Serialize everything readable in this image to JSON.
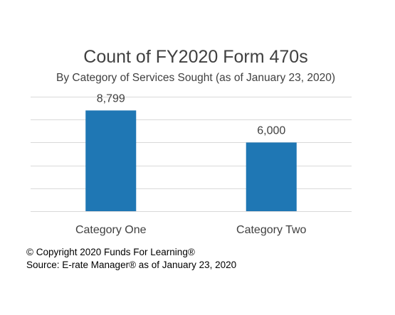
{
  "chart_data": {
    "type": "bar",
    "title": "Count of FY2020 Form 470s",
    "subtitle": "By Category of Services Sought (as of January 23, 2020)",
    "categories": [
      "Category One",
      "Category Two"
    ],
    "values": [
      8799,
      6000
    ],
    "value_labels": [
      "8,799",
      "6,000"
    ],
    "xlabel": "",
    "ylabel": "",
    "ylim": [
      0,
      10000
    ],
    "y_tick_step": 2000,
    "grid": true,
    "legend": "none",
    "bar_color": "#1F77B4",
    "grid_color": "#D9D9D9"
  },
  "footnotes": {
    "copyright": "© Copyright 2020 Funds For Learning®",
    "source": "Source: E-rate Manager® as of January 23, 2020"
  }
}
